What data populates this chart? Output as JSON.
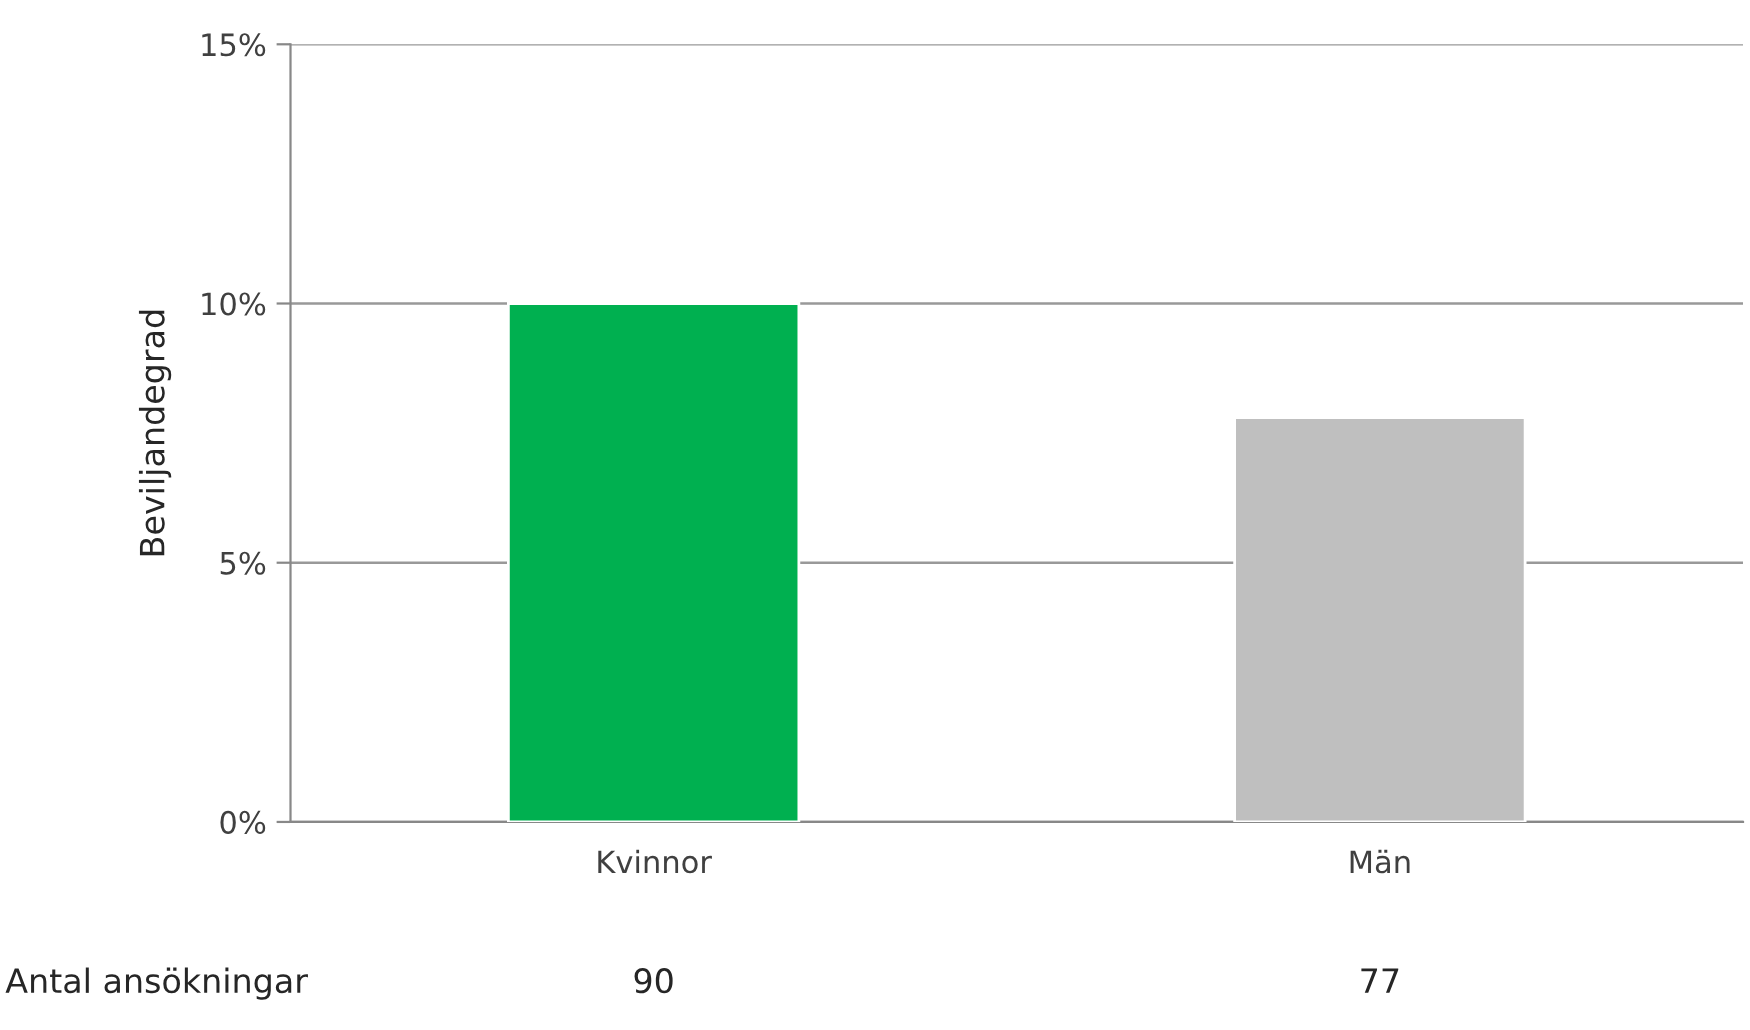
{
  "chart_data": {
    "type": "bar",
    "ylabel": "Beviljandegrad",
    "categories": [
      "Kvinnor",
      "Män"
    ],
    "values": [
      10,
      7.8
    ],
    "colors": [
      "#00b050",
      "#bfbfbf"
    ],
    "ylim": [
      0,
      15
    ],
    "yticks": [
      {
        "value": 0,
        "label": "0%"
      },
      {
        "value": 5,
        "label": "5%"
      },
      {
        "value": 10,
        "label": "10%"
      },
      {
        "value": 15,
        "label": "15%"
      }
    ],
    "grid": "y",
    "annotations": [
      "Antal ansökningar",
      "90",
      "77"
    ]
  }
}
